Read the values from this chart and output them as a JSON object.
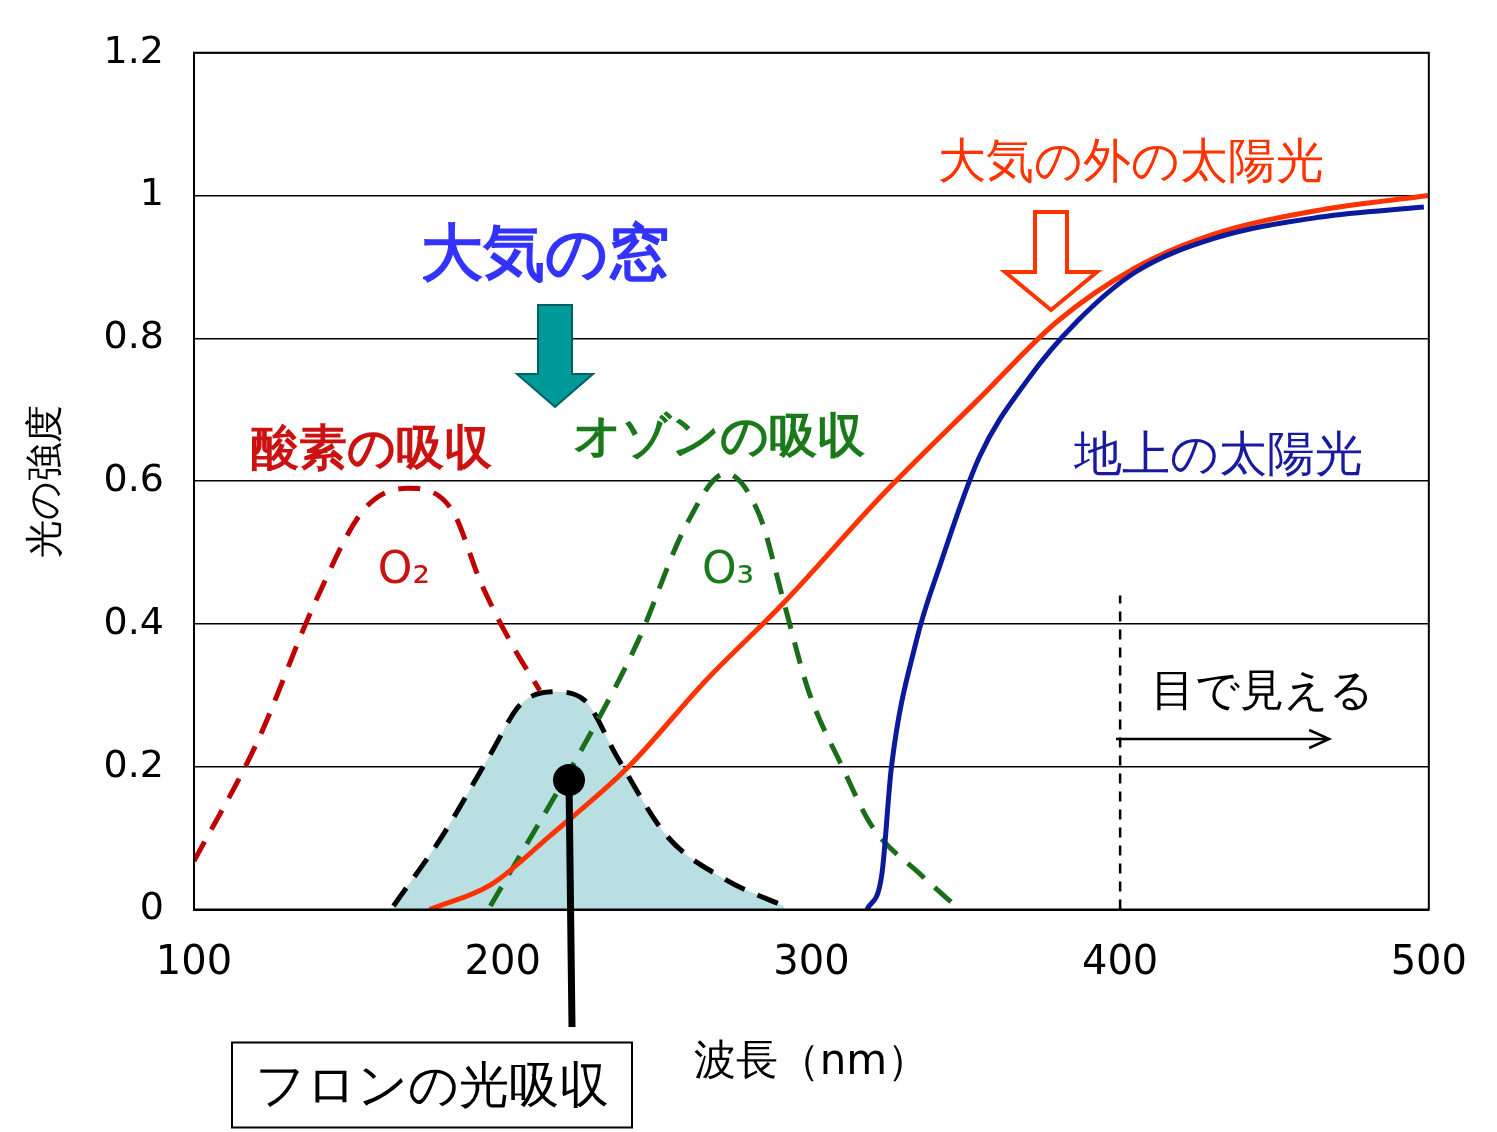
{
  "chart_data": {
    "type": "line",
    "xlabel": "波長（nm）",
    "ylabel": "光の強度",
    "xlim": [
      100,
      500
    ],
    "ylim": [
      0,
      1.2
    ],
    "xticks": [
      100,
      200,
      300,
      400,
      500
    ],
    "yticks": [
      0,
      0.2,
      0.4,
      0.6,
      0.8,
      1,
      1.2
    ],
    "grid": "y",
    "legend": false,
    "marker": "none",
    "series": [
      {
        "name": "酸素の吸収",
        "color": "#c00000",
        "line_style": "dashed",
        "x": [
          100,
          120.3,
          139.2,
          155,
          169.3,
          183.5,
          193,
          202.5,
          212
        ],
        "values": [
          0.068,
          0.233,
          0.43,
          0.56,
          0.59,
          0.56,
          0.457,
          0.375,
          0.307
        ]
      },
      {
        "name": "フロンの光吸収",
        "type": "area",
        "color": "#b9dfe3",
        "line_style": "dashed",
        "x": [
          164.6,
          180.4,
          196.2,
          205.7,
          216.8,
          226.3,
          237.3,
          253.2,
          272.2,
          291.1
        ],
        "values": [
          0.005,
          0.103,
          0.219,
          0.287,
          0.305,
          0.294,
          0.212,
          0.103,
          0.042,
          0.005
        ]
      },
      {
        "name": "オゾンの吸収",
        "color": "#1a6e1a",
        "line_style": "dashed",
        "x": [
          196,
          231,
          243.7,
          259.5,
          272.2,
          283.2,
          291.1,
          299,
          310.1,
          319.6,
          335.4,
          348
        ],
        "values": [
          0.005,
          0.267,
          0.375,
          0.539,
          0.611,
          0.552,
          0.43,
          0.307,
          0.199,
          0.117,
          0.049,
          0
        ]
      },
      {
        "name": "大気の外の太陽光",
        "color": "#ff3300",
        "line_style": "solid",
        "x": [
          176.3,
          196.2,
          215.2,
          240.5,
          265.8,
          291.1,
          322.8,
          354.4,
          379.7,
          405,
          430.4,
          465,
          500
        ],
        "values": [
          0,
          0.035,
          0.103,
          0.199,
          0.321,
          0.43,
          0.58,
          0.716,
          0.824,
          0.899,
          0.946,
          0.98,
          1
        ]
      },
      {
        "name": "地上の太陽光",
        "color": "#0a1a9c",
        "line_style": "solid",
        "x": [
          318,
          322.8,
          325.9,
          333.9,
          341.8,
          354.4,
          370.2,
          386.1,
          405,
          430.4,
          465,
          498.4
        ],
        "values": [
          0,
          0.049,
          0.199,
          0.375,
          0.484,
          0.634,
          0.743,
          0.824,
          0.893,
          0.94,
          0.97,
          0.984
        ]
      }
    ],
    "ref_lines": [
      {
        "axis": "x",
        "value": 400,
        "label": "目で見える",
        "color": "#000000",
        "line_style": "dashed"
      }
    ],
    "annotations": [
      "大気の窓",
      "O₂",
      "O₃"
    ]
  }
}
